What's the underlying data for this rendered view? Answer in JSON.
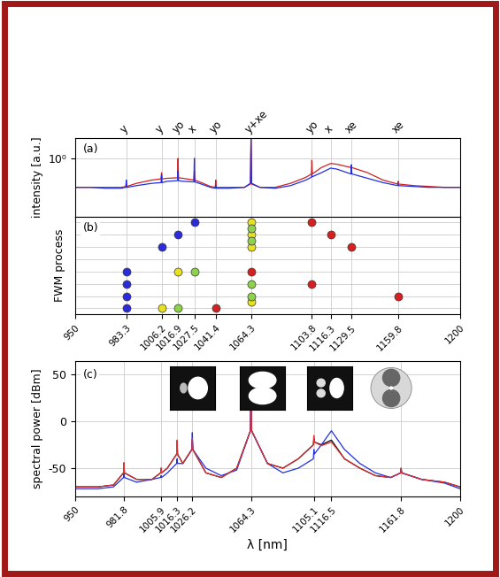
{
  "chart_data": [
    {
      "type": "line",
      "panel_label": "(a)",
      "ylabel": "intensity [a.u.]",
      "log": "y",
      "grid": true,
      "tick_labels": "y",
      "xlim": [
        950,
        1200
      ],
      "xticks": [
        950,
        983.3,
        1006.2,
        1016.9,
        1027.5,
        1041.4,
        1064.3,
        1103.8,
        1116.3,
        1129.5,
        1159.8,
        1200
      ],
      "ylim": [
        0.04,
        3
      ],
      "yticks": [
        {
          "value": 1,
          "label": "10⁰"
        }
      ],
      "annotations": [
        {
          "x": 983.3,
          "text": "y"
        },
        {
          "x": 1006.2,
          "text": "y"
        },
        {
          "x": 1016.9,
          "text": "yo"
        },
        {
          "x": 1027.5,
          "text": "x"
        },
        {
          "x": 1041.4,
          "text": "yo"
        },
        {
          "x": 1064.3,
          "text": "y+xe"
        },
        {
          "x": 1103.8,
          "text": "yo"
        },
        {
          "x": 1116.3,
          "text": "x"
        },
        {
          "x": 1129.5,
          "text": "xe"
        },
        {
          "x": 1159.8,
          "text": "xe"
        }
      ],
      "x": [
        950,
        960,
        970,
        980,
        983,
        983.3,
        983.6,
        990,
        1000,
        1005.9,
        1006.2,
        1006.5,
        1010,
        1016.6,
        1016.9,
        1017.2,
        1020,
        1027.2,
        1027.5,
        1027.8,
        1032,
        1038,
        1041.1,
        1041.4,
        1041.7,
        1050,
        1060,
        1063.9,
        1064.3,
        1064.7,
        1070,
        1080,
        1090,
        1100,
        1103.5,
        1103.8,
        1104.1,
        1110,
        1116,
        1120,
        1129.2,
        1129.5,
        1129.8,
        1140,
        1150,
        1159.5,
        1159.8,
        1160.1,
        1170,
        1180,
        1190,
        1200
      ],
      "series": [
        {
          "color": "#d02020",
          "values": [
            0.2,
            0.2,
            0.2,
            0.2,
            0.21,
            0.25,
            0.21,
            0.25,
            0.3,
            0.32,
            0.45,
            0.32,
            0.33,
            0.34,
            1.0,
            0.34,
            0.33,
            0.3,
            0.5,
            0.3,
            0.26,
            0.21,
            0.2,
            0.3,
            0.2,
            0.2,
            0.2,
            0.24,
            3.0,
            0.24,
            0.2,
            0.2,
            0.25,
            0.35,
            0.42,
            0.9,
            0.42,
            0.6,
            0.75,
            0.72,
            0.6,
            0.62,
            0.6,
            0.45,
            0.3,
            0.24,
            0.28,
            0.24,
            0.22,
            0.21,
            0.2,
            0.2
          ]
        },
        {
          "color": "#2030e0",
          "values": [
            0.2,
            0.2,
            0.19,
            0.19,
            0.2,
            0.3,
            0.2,
            0.22,
            0.25,
            0.26,
            0.4,
            0.26,
            0.28,
            0.29,
            0.5,
            0.29,
            0.28,
            0.27,
            1.0,
            0.27,
            0.24,
            0.2,
            0.19,
            0.22,
            0.19,
            0.19,
            0.2,
            0.25,
            3.0,
            0.25,
            0.2,
            0.19,
            0.22,
            0.3,
            0.35,
            0.4,
            0.36,
            0.45,
            0.58,
            0.55,
            0.42,
            0.7,
            0.42,
            0.33,
            0.26,
            0.22,
            0.24,
            0.22,
            0.21,
            0.2,
            0.2,
            0.2
          ]
        }
      ]
    },
    {
      "type": "scatter",
      "panel_label": "(b)",
      "ylabel": "FWM process",
      "grid": true,
      "tick_labels": "x",
      "xlim": [
        950,
        1200
      ],
      "xticks": [
        950,
        983.3,
        1006.2,
        1016.9,
        1027.5,
        1041.4,
        1064.3,
        1103.8,
        1116.3,
        1129.5,
        1159.8,
        1200
      ],
      "ylim": [
        0.5,
        8.5
      ],
      "yticks": [
        1,
        2,
        3,
        4,
        5,
        6,
        7,
        8
      ],
      "series": [
        {
          "color": "#2b2bd9",
          "x": [
            983.3,
            983.3,
            983.3,
            983.3,
            1006.2,
            1016.9,
            1027.5
          ],
          "values": [
            1,
            2,
            3,
            4,
            6,
            7,
            8
          ]
        },
        {
          "color": "#e8e020",
          "x": [
            1006.2,
            1016.9,
            1064.3,
            1064.3,
            1064.3,
            1064.3
          ],
          "values": [
            1,
            4,
            8,
            7,
            6,
            1.5
          ]
        },
        {
          "color": "#8ed14a",
          "x": [
            1016.9,
            1027.5,
            1064.3,
            1064.3,
            1064.3,
            1064.3
          ],
          "values": [
            1,
            4,
            7.5,
            6.5,
            3,
            2
          ]
        },
        {
          "color": "#d62020",
          "x": [
            1041.4,
            1064.3,
            1103.8,
            1103.8,
            1116.3,
            1129.5,
            1159.8
          ],
          "values": [
            1,
            4,
            8,
            3,
            7,
            6,
            2
          ]
        }
      ]
    },
    {
      "type": "line",
      "panel_label": "(c)",
      "ylabel": "spectral power [dBm]",
      "xlabel": "λ [nm]",
      "grid": true,
      "xlim": [
        950,
        1200
      ],
      "xticks": [
        950,
        981.8,
        1005.9,
        1016.3,
        1026.2,
        1064.3,
        1105.1,
        1116.5,
        1161.8,
        1200
      ],
      "ylim": [
        -80,
        65
      ],
      "yticks": [
        -50,
        0,
        50
      ],
      "x": [
        950,
        965,
        975,
        981.5,
        981.8,
        982.1,
        990,
        1000,
        1005.6,
        1005.9,
        1006.2,
        1010,
        1016,
        1016.3,
        1016.6,
        1020,
        1025.9,
        1026.2,
        1026.5,
        1035,
        1045,
        1055,
        1063.9,
        1064.3,
        1064.7,
        1075,
        1085,
        1095,
        1104.8,
        1105.1,
        1105.4,
        1110,
        1116.5,
        1125,
        1135,
        1145,
        1155,
        1161.5,
        1161.8,
        1162.1,
        1175,
        1190,
        1200
      ],
      "series": [
        {
          "color": "#000000",
          "values": [
            -70,
            -70,
            -68,
            -55,
            -45,
            -55,
            -62,
            -62,
            -55,
            -50,
            -55,
            -50,
            -35,
            -22,
            -35,
            -45,
            -30,
            -20,
            -30,
            -55,
            -60,
            -50,
            -10,
            45,
            -10,
            -45,
            -50,
            -40,
            -25,
            -18,
            -22,
            -25,
            -20,
            -40,
            -50,
            -58,
            -60,
            -55,
            -50,
            -55,
            -62,
            -65,
            -70
          ]
        },
        {
          "color": "#2030e0",
          "values": [
            -72,
            -72,
            -70,
            -60,
            -55,
            -60,
            -65,
            -62,
            -60,
            -58,
            -60,
            -55,
            -45,
            -40,
            -45,
            -45,
            -30,
            -12,
            -30,
            -50,
            -58,
            -52,
            -10,
            45,
            -10,
            -45,
            -55,
            -50,
            -40,
            -30,
            -35,
            -25,
            -10,
            -30,
            -45,
            -55,
            -60,
            -55,
            -52,
            -55,
            -62,
            -66,
            -72
          ]
        },
        {
          "color": "#e03030",
          "values": [
            -70,
            -70,
            -68,
            -55,
            -44,
            -55,
            -62,
            -62,
            -55,
            -50,
            -55,
            -50,
            -35,
            -20,
            -35,
            -45,
            -30,
            -18,
            -30,
            -55,
            -60,
            -50,
            -10,
            45,
            -10,
            -45,
            -50,
            -40,
            -25,
            -15,
            -22,
            -26,
            -22,
            -40,
            -50,
            -58,
            -60,
            -55,
            -50,
            -55,
            -62,
            -65,
            -70
          ]
        }
      ]
    }
  ]
}
